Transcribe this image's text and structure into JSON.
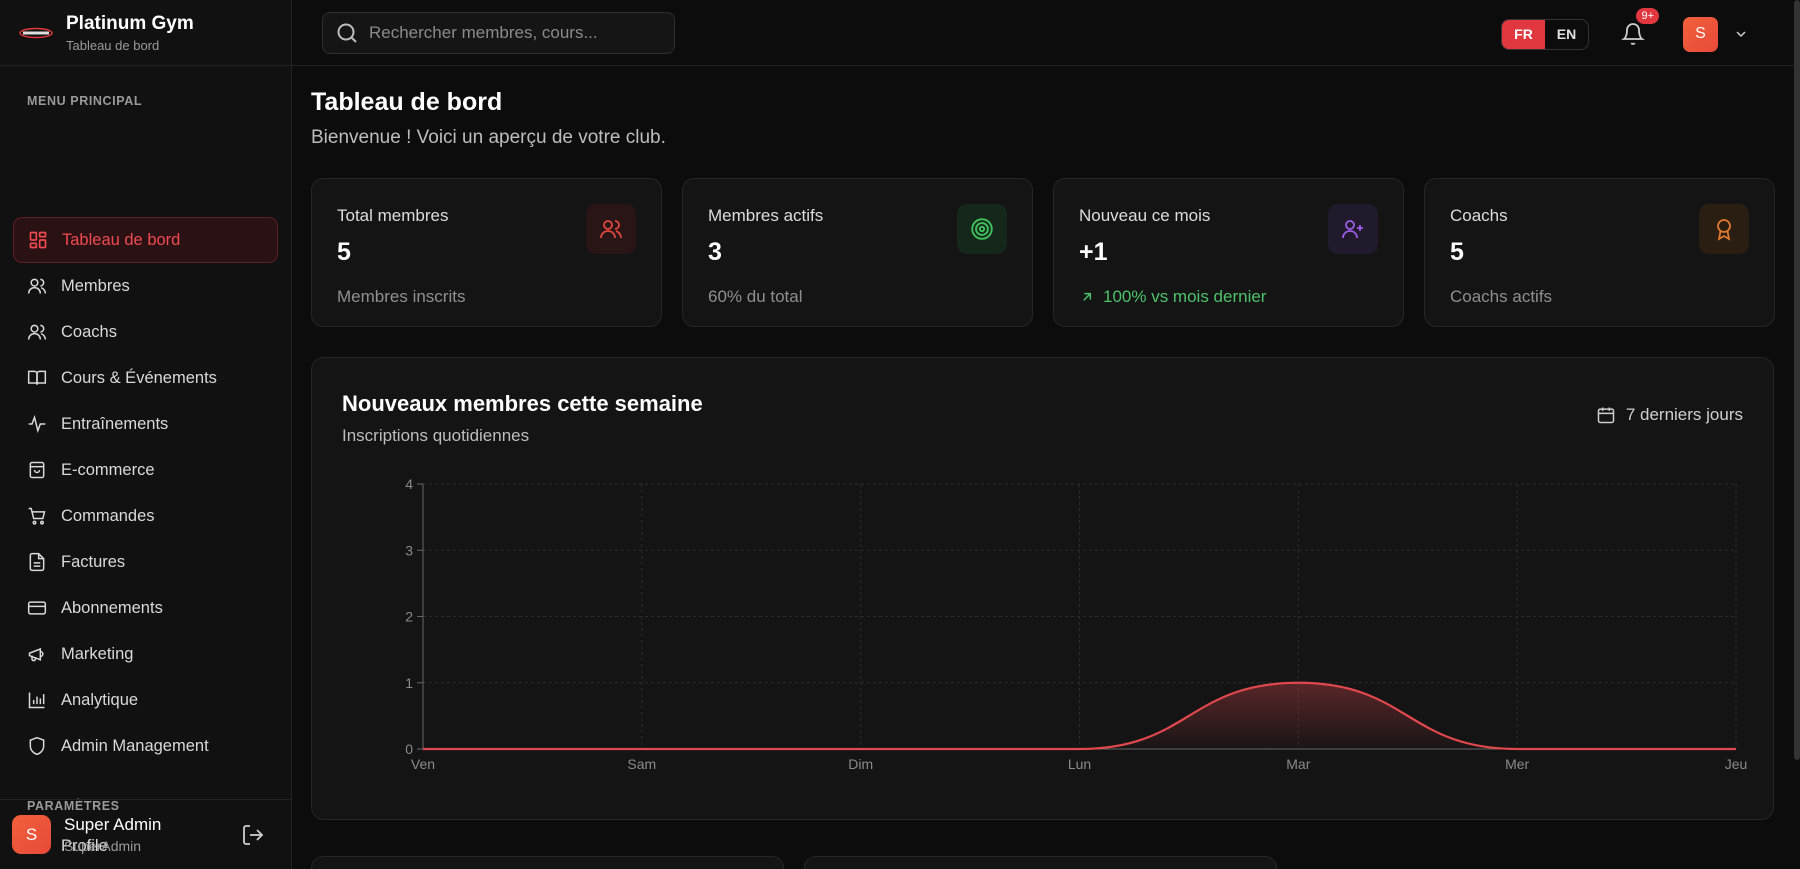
{
  "brand": {
    "name": "Platinum Gym",
    "subtitle": "Tableau de bord"
  },
  "sidebar": {
    "main_label": "MENU PRINCIPAL",
    "items": [
      {
        "label": "Tableau de bord",
        "icon": "dashboard-icon",
        "active": true
      },
      {
        "label": "Membres",
        "icon": "users-icon"
      },
      {
        "label": "Coachs",
        "icon": "users-icon"
      },
      {
        "label": "Cours & Événements",
        "icon": "book-icon"
      },
      {
        "label": "Entraînements",
        "icon": "activity-icon"
      },
      {
        "label": "E-commerce",
        "icon": "shopping-bag-icon"
      },
      {
        "label": "Commandes",
        "icon": "cart-icon"
      },
      {
        "label": "Factures",
        "icon": "file-icon"
      },
      {
        "label": "Abonnements",
        "icon": "credit-card-icon"
      },
      {
        "label": "Marketing",
        "icon": "megaphone-icon"
      },
      {
        "label": "Analytique",
        "icon": "bar-chart-icon"
      },
      {
        "label": "Admin Management",
        "icon": "shield-icon"
      }
    ],
    "params_label": "PARAMÈTRES",
    "params_items": [
      {
        "label": "Profile",
        "icon": "user-icon"
      }
    ],
    "user": {
      "initial": "S",
      "name": "Super Admin",
      "role": "SuperAdmin"
    }
  },
  "topbar": {
    "search_placeholder": "Rechercher membres, cours...",
    "lang": [
      "FR",
      "EN"
    ],
    "lang_active": "FR",
    "notification_badge": "9+",
    "avatar_initial": "S"
  },
  "page": {
    "title": "Tableau de bord",
    "subtitle": "Bienvenue ! Voici un aperçu de votre club."
  },
  "stats": [
    {
      "label": "Total membres",
      "value": "5",
      "foot": "Membres inscrits",
      "icon": "users-icon",
      "color": "#e0483e"
    },
    {
      "label": "Membres actifs",
      "value": "3",
      "foot": "60% du total",
      "icon": "target-icon",
      "color": "#3fbf5a"
    },
    {
      "label": "Nouveau ce mois",
      "value": "+1",
      "foot": "100% vs mois dernier",
      "icon": "user-plus-icon",
      "color": "#9b5de5"
    },
    {
      "label": "Coachs",
      "value": "5",
      "foot": "Coachs actifs",
      "icon": "award-icon",
      "color": "#e07a2e"
    }
  ],
  "chart": {
    "title": "Nouveaux membres cette semaine",
    "subtitle": "Inscriptions quotidiennes",
    "range_label": "7 derniers jours"
  },
  "chart_data": {
    "type": "area",
    "categories": [
      "Ven",
      "Sam",
      "Dim",
      "Lun",
      "Mar",
      "Mer",
      "Jeu"
    ],
    "values": [
      0,
      0,
      0,
      0,
      1,
      0,
      0
    ],
    "yticks": [
      "0",
      "1",
      "2",
      "3",
      "4"
    ],
    "ylim": [
      0,
      4
    ],
    "grid": true,
    "color": "#e0484e"
  }
}
